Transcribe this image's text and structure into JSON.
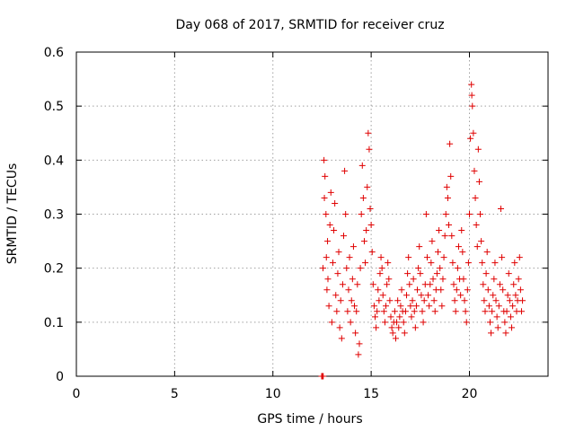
{
  "chart_data": {
    "type": "scatter",
    "title": "Day 068 of 2017, SRMTID for receiver cruz",
    "xlabel": "GPS time / hours",
    "ylabel": "SRMTID / TECUs",
    "xlim": [
      0,
      24
    ],
    "ylim": [
      0,
      0.6
    ],
    "x_ticks": [
      0,
      5,
      10,
      15,
      20
    ],
    "x_tick_labels": [
      "0",
      "5",
      "10",
      "15",
      "20"
    ],
    "y_ticks": [
      0,
      0.1,
      0.2,
      0.3,
      0.4,
      0.5,
      0.6
    ],
    "y_tick_labels": [
      "0",
      "0.1",
      "0.2",
      "0.3",
      "0.4",
      "0.5",
      "0.6"
    ],
    "grid": true,
    "marker": "+",
    "color": "#e00000",
    "series": [
      {
        "name": "SRMTID",
        "points": [
          [
            12.48,
            0.0
          ],
          [
            12.5,
            0.0
          ],
          [
            12.52,
            0.0
          ],
          [
            12.54,
            0.0
          ],
          [
            12.56,
            0.0
          ],
          [
            12.55,
            0.2
          ],
          [
            12.6,
            0.4
          ],
          [
            12.62,
            0.33
          ],
          [
            12.65,
            0.37
          ],
          [
            12.7,
            0.3
          ],
          [
            12.72,
            0.22
          ],
          [
            12.75,
            0.16
          ],
          [
            12.78,
            0.25
          ],
          [
            12.8,
            0.18
          ],
          [
            12.85,
            0.13
          ],
          [
            12.9,
            0.28
          ],
          [
            12.95,
            0.34
          ],
          [
            13.0,
            0.1
          ],
          [
            13.05,
            0.21
          ],
          [
            13.1,
            0.27
          ],
          [
            13.15,
            0.32
          ],
          [
            13.2,
            0.15
          ],
          [
            13.25,
            0.12
          ],
          [
            13.3,
            0.19
          ],
          [
            13.35,
            0.23
          ],
          [
            13.4,
            0.09
          ],
          [
            13.45,
            0.14
          ],
          [
            13.5,
            0.07
          ],
          [
            13.55,
            0.17
          ],
          [
            13.6,
            0.26
          ],
          [
            13.65,
            0.38
          ],
          [
            13.7,
            0.3
          ],
          [
            13.75,
            0.2
          ],
          [
            13.8,
            0.12
          ],
          [
            13.85,
            0.16
          ],
          [
            13.9,
            0.22
          ],
          [
            13.95,
            0.1
          ],
          [
            14.0,
            0.14
          ],
          [
            14.05,
            0.18
          ],
          [
            14.1,
            0.24
          ],
          [
            14.15,
            0.13
          ],
          [
            14.2,
            0.08
          ],
          [
            14.25,
            0.12
          ],
          [
            14.3,
            0.17
          ],
          [
            14.35,
            0.04
          ],
          [
            14.4,
            0.06
          ],
          [
            14.45,
            0.2
          ],
          [
            14.5,
            0.3
          ],
          [
            14.55,
            0.39
          ],
          [
            14.6,
            0.33
          ],
          [
            14.65,
            0.25
          ],
          [
            14.7,
            0.21
          ],
          [
            14.75,
            0.27
          ],
          [
            14.8,
            0.35
          ],
          [
            14.85,
            0.45
          ],
          [
            14.9,
            0.42
          ],
          [
            14.95,
            0.31
          ],
          [
            15.0,
            0.28
          ],
          [
            15.05,
            0.23
          ],
          [
            15.1,
            0.17
          ],
          [
            15.15,
            0.13
          ],
          [
            15.2,
            0.11
          ],
          [
            15.25,
            0.09
          ],
          [
            15.3,
            0.12
          ],
          [
            15.35,
            0.16
          ],
          [
            15.4,
            0.14
          ],
          [
            15.45,
            0.19
          ],
          [
            15.5,
            0.22
          ],
          [
            15.55,
            0.2
          ],
          [
            15.6,
            0.15
          ],
          [
            15.65,
            0.12
          ],
          [
            15.7,
            0.1
          ],
          [
            15.75,
            0.13
          ],
          [
            15.8,
            0.17
          ],
          [
            15.85,
            0.21
          ],
          [
            15.9,
            0.18
          ],
          [
            15.95,
            0.14
          ],
          [
            16.0,
            0.11
          ],
          [
            16.05,
            0.09
          ],
          [
            16.1,
            0.08
          ],
          [
            16.15,
            0.1
          ],
          [
            16.2,
            0.12
          ],
          [
            16.25,
            0.07
          ],
          [
            16.3,
            0.1
          ],
          [
            16.35,
            0.14
          ],
          [
            16.4,
            0.09
          ],
          [
            16.45,
            0.11
          ],
          [
            16.5,
            0.13
          ],
          [
            16.55,
            0.16
          ],
          [
            16.6,
            0.12
          ],
          [
            16.65,
            0.1
          ],
          [
            16.7,
            0.08
          ],
          [
            16.75,
            0.12
          ],
          [
            16.8,
            0.15
          ],
          [
            16.85,
            0.19
          ],
          [
            16.9,
            0.22
          ],
          [
            16.95,
            0.17
          ],
          [
            17.0,
            0.13
          ],
          [
            17.05,
            0.11
          ],
          [
            17.1,
            0.14
          ],
          [
            17.15,
            0.18
          ],
          [
            17.2,
            0.12
          ],
          [
            17.25,
            0.09
          ],
          [
            17.3,
            0.13
          ],
          [
            17.35,
            0.16
          ],
          [
            17.4,
            0.2
          ],
          [
            17.45,
            0.24
          ],
          [
            17.5,
            0.19
          ],
          [
            17.55,
            0.15
          ],
          [
            17.6,
            0.12
          ],
          [
            17.65,
            0.1
          ],
          [
            17.7,
            0.14
          ],
          [
            17.75,
            0.17
          ],
          [
            17.8,
            0.3
          ],
          [
            17.85,
            0.22
          ],
          [
            17.9,
            0.15
          ],
          [
            17.95,
            0.13
          ],
          [
            18.0,
            0.17
          ],
          [
            18.05,
            0.21
          ],
          [
            18.1,
            0.25
          ],
          [
            18.15,
            0.18
          ],
          [
            18.2,
            0.14
          ],
          [
            18.25,
            0.12
          ],
          [
            18.3,
            0.16
          ],
          [
            18.35,
            0.19
          ],
          [
            18.4,
            0.23
          ],
          [
            18.45,
            0.27
          ],
          [
            18.5,
            0.2
          ],
          [
            18.55,
            0.16
          ],
          [
            18.6,
            0.13
          ],
          [
            18.65,
            0.18
          ],
          [
            18.7,
            0.22
          ],
          [
            18.75,
            0.26
          ],
          [
            18.8,
            0.3
          ],
          [
            18.85,
            0.35
          ],
          [
            18.9,
            0.33
          ],
          [
            18.95,
            0.28
          ],
          [
            19.0,
            0.43
          ],
          [
            19.05,
            0.37
          ],
          [
            19.1,
            0.26
          ],
          [
            19.15,
            0.21
          ],
          [
            19.2,
            0.17
          ],
          [
            19.25,
            0.14
          ],
          [
            19.3,
            0.12
          ],
          [
            19.35,
            0.16
          ],
          [
            19.4,
            0.2
          ],
          [
            19.45,
            0.24
          ],
          [
            19.5,
            0.18
          ],
          [
            19.55,
            0.15
          ],
          [
            19.6,
            0.27
          ],
          [
            19.65,
            0.23
          ],
          [
            19.7,
            0.18
          ],
          [
            19.75,
            0.14
          ],
          [
            19.8,
            0.12
          ],
          [
            19.85,
            0.1
          ],
          [
            19.9,
            0.16
          ],
          [
            19.95,
            0.21
          ],
          [
            20.0,
            0.3
          ],
          [
            20.05,
            0.44
          ],
          [
            20.1,
            0.54
          ],
          [
            20.12,
            0.52
          ],
          [
            20.15,
            0.5
          ],
          [
            20.2,
            0.45
          ],
          [
            20.25,
            0.38
          ],
          [
            20.3,
            0.33
          ],
          [
            20.35,
            0.28
          ],
          [
            20.4,
            0.24
          ],
          [
            20.45,
            0.42
          ],
          [
            20.5,
            0.36
          ],
          [
            20.55,
            0.3
          ],
          [
            20.6,
            0.25
          ],
          [
            20.65,
            0.21
          ],
          [
            20.7,
            0.17
          ],
          [
            20.75,
            0.14
          ],
          [
            20.8,
            0.12
          ],
          [
            20.85,
            0.19
          ],
          [
            20.9,
            0.23
          ],
          [
            20.95,
            0.16
          ],
          [
            21.0,
            0.13
          ],
          [
            21.05,
            0.1
          ],
          [
            21.1,
            0.08
          ],
          [
            21.15,
            0.12
          ],
          [
            21.2,
            0.15
          ],
          [
            21.25,
            0.18
          ],
          [
            21.3,
            0.21
          ],
          [
            21.35,
            0.14
          ],
          [
            21.4,
            0.11
          ],
          [
            21.45,
            0.09
          ],
          [
            21.5,
            0.13
          ],
          [
            21.55,
            0.17
          ],
          [
            21.6,
            0.31
          ],
          [
            21.65,
            0.22
          ],
          [
            21.7,
            0.16
          ],
          [
            21.75,
            0.12
          ],
          [
            21.8,
            0.1
          ],
          [
            21.85,
            0.08
          ],
          [
            21.9,
            0.12
          ],
          [
            21.95,
            0.15
          ],
          [
            22.0,
            0.19
          ],
          [
            22.05,
            0.14
          ],
          [
            22.1,
            0.11
          ],
          [
            22.15,
            0.09
          ],
          [
            22.2,
            0.13
          ],
          [
            22.25,
            0.17
          ],
          [
            22.3,
            0.21
          ],
          [
            22.35,
            0.15
          ],
          [
            22.4,
            0.12
          ],
          [
            22.45,
            0.14
          ],
          [
            22.5,
            0.18
          ],
          [
            22.55,
            0.22
          ],
          [
            22.6,
            0.16
          ],
          [
            22.65,
            0.12
          ],
          [
            22.7,
            0.14
          ]
        ]
      }
    ]
  }
}
